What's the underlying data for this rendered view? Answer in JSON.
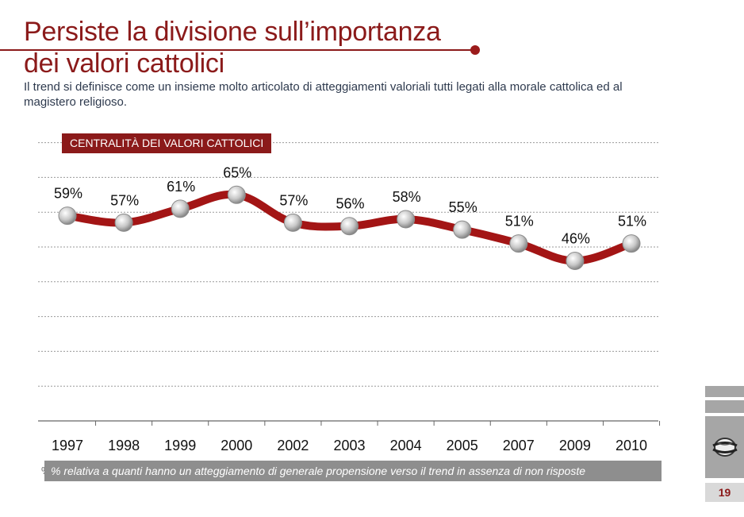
{
  "slide": {
    "title_line1": "Persiste la divisione sull’importanza",
    "title_line2": "dei valori cattolici",
    "subtitle": "Il trend si definisce come un insieme molto articolato di atteggiamenti valoriali tutti legati alla morale cattolica ed al magistero religioso.",
    "footnote_mark": "%",
    "footnote": "% relativa a quanti hanno un atteggiamento di generale propensione verso  il trend in assenza di non risposte",
    "page_number": "19"
  },
  "colors": {
    "accent": "#8b1a1a",
    "line": "#a31515",
    "grid": "#9a9a9a",
    "footnote_bg": "#8e8e8e",
    "sidebar": "#a6a6a6"
  },
  "chart_data": {
    "type": "line",
    "title": "CENTRALITÀ DEI VALORI CATTOLICI",
    "categories": [
      "1997",
      "1998",
      "1999",
      "2000",
      "2002",
      "2003",
      "2004",
      "2005",
      "2007",
      "2009",
      "2010"
    ],
    "values": [
      59,
      57,
      61,
      65,
      57,
      56,
      58,
      55,
      51,
      46,
      51
    ],
    "data_labels": [
      "59%",
      "57%",
      "61%",
      "65%",
      "57%",
      "56%",
      "58%",
      "55%",
      "51%",
      "46%",
      "51%"
    ],
    "xlabel": "",
    "ylabel": "",
    "ylim": [
      0,
      80
    ],
    "grid": true,
    "legend": "none"
  }
}
